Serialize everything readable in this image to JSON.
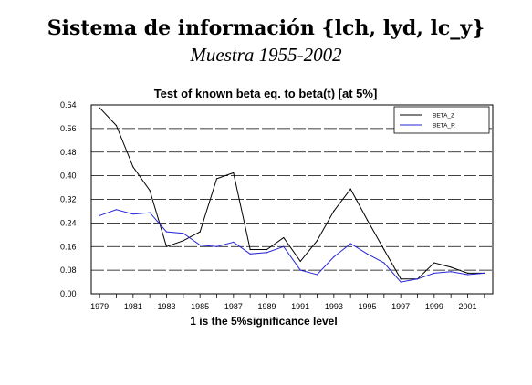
{
  "header": {
    "title": "Sistema de información {lch, lyd, lc_y}",
    "subtitle": "Muestra 1955-2002"
  },
  "chart_data": {
    "type": "line",
    "title": "Test of known beta eq. to beta(t) [at 5%]",
    "xlabel": "1 is the 5%significance level",
    "ylabel": "",
    "x": [
      1979,
      1980,
      1981,
      1982,
      1983,
      1984,
      1985,
      1986,
      1987,
      1988,
      1989,
      1990,
      1991,
      1992,
      1993,
      1994,
      1995,
      1996,
      1997,
      1998,
      1999,
      2000,
      2001,
      2002
    ],
    "xticks": [
      "1979",
      "1981",
      "1983",
      "1985",
      "1987",
      "1989",
      "1991",
      "1993",
      "1995",
      "1997",
      "1999",
      "2001"
    ],
    "yticks": [
      "0.00",
      "0.08",
      "0.16",
      "0.24",
      "0.32",
      "0.40",
      "0.48",
      "0.56",
      "0.64"
    ],
    "ylim": [
      0,
      0.64
    ],
    "grid": "horizontal dashed",
    "legend_position": "top-right",
    "series": [
      {
        "name": "BETA_Z",
        "color": "#000000",
        "values": [
          0.63,
          0.57,
          0.43,
          0.35,
          0.16,
          0.18,
          0.21,
          0.39,
          0.41,
          0.15,
          0.15,
          0.19,
          0.11,
          0.18,
          0.28,
          0.355,
          0.25,
          0.15,
          0.05,
          0.05,
          0.105,
          0.09,
          0.07,
          0.07
        ]
      },
      {
        "name": "BETA_R",
        "color": "#2626d9",
        "values": [
          0.265,
          0.285,
          0.27,
          0.275,
          0.21,
          0.205,
          0.165,
          0.16,
          0.175,
          0.135,
          0.14,
          0.16,
          0.08,
          0.065,
          0.125,
          0.17,
          0.135,
          0.105,
          0.04,
          0.05,
          0.07,
          0.075,
          0.065,
          0.07
        ]
      }
    ]
  }
}
